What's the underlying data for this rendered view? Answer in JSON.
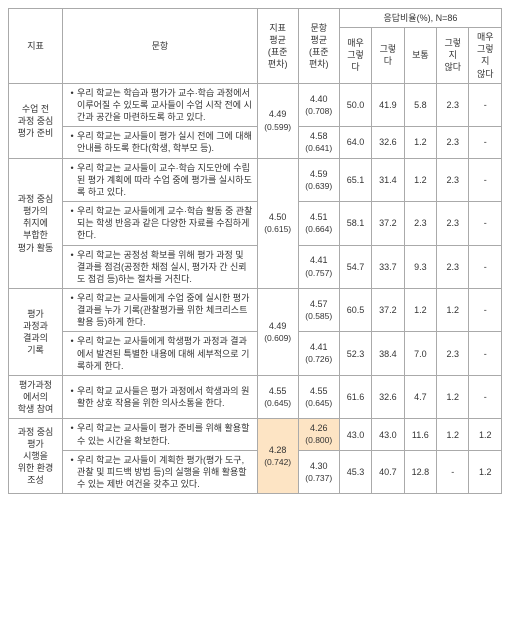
{
  "header": {
    "c1": "지표",
    "c2": "문항",
    "c3a": "지표",
    "c3b": "평균",
    "c3c": "(표준",
    "c3d": "편차)",
    "c4a": "문항",
    "c4b": "평균",
    "c4c": "(표준",
    "c4d": "편차)",
    "c5": "응답비율(%), N=86",
    "c5a1": "매우",
    "c5a2": "그렇다",
    "c5b": "그렇다",
    "c5c": "보통",
    "c5d1": "그렇지",
    "c5d2": "않다",
    "c5e1": "매우",
    "c5e2": "그렇지",
    "c5e3": "않다"
  },
  "groups": [
    {
      "label": "수업 전\n과정 중심\n평가 준비",
      "avg": "4.49",
      "sd": "(0.599)",
      "rows": [
        {
          "desc": "우리 학교는 학습과 평가가 교수·학습 과정에서 이루어질 수 있도록 교사들이 수업 시작 전에 시간과 공간을 마련하도록 하고 있다.",
          "avg": "4.40",
          "sd": "(0.708)",
          "v": [
            "50.0",
            "41.9",
            "5.8",
            "2.3",
            "-"
          ]
        },
        {
          "desc": "우리 학교는 교사들이 평가 실시 전에 그에 대해 안내를 하도록 한다(학생, 학부모 등).",
          "avg": "4.58",
          "sd": "(0.641)",
          "v": [
            "64.0",
            "32.6",
            "1.2",
            "2.3",
            "-"
          ]
        }
      ]
    },
    {
      "label": "과정 중심\n평가의\n취지에\n부합한\n평가 활동",
      "avg": "4.50",
      "sd": "(0.615)",
      "rows": [
        {
          "desc": "우리 학교는 교사들이 교수·학습 지도안에 수립된 평가 계획에 따라 수업 중에 평가를 실시하도록 하고 있다.",
          "avg": "4.59",
          "sd": "(0.639)",
          "v": [
            "65.1",
            "31.4",
            "1.2",
            "2.3",
            "-"
          ]
        },
        {
          "desc": "우리 학교는 교사들에게 교수·학습 활동 중 관찰되는 학생 반응과 같은 다양한 자료를 수집하게 한다.",
          "avg": "4.51",
          "sd": "(0.664)",
          "v": [
            "58.1",
            "37.2",
            "2.3",
            "2.3",
            "-"
          ]
        },
        {
          "desc": "우리 학교는 공정성 확보를 위해 평가 과정 및 결과를 점검(공정한 채점 실시, 평가자 간 신뢰도 점검 등)하는 절차를 거친다.",
          "avg": "4.41",
          "sd": "(0.757)",
          "v": [
            "54.7",
            "33.7",
            "9.3",
            "2.3",
            "-"
          ]
        }
      ]
    },
    {
      "label": "평가\n과정과\n결과의\n기록",
      "avg": "4.49",
      "sd": "(0.609)",
      "rows": [
        {
          "desc": "우리 학교는 교사들에게 수업 중에 실시한 평가 결과를 누가 기록(관찰평가를 위한 체크리스트 활용 등)하게 한다.",
          "avg": "4.57",
          "sd": "(0.585)",
          "v": [
            "60.5",
            "37.2",
            "1.2",
            "1.2",
            "-"
          ]
        },
        {
          "desc": "우리 학교는 교사들에게 학생평가 과정과 결과에서 발견된 특별한 내용에 대해 세부적으로 기록하게 한다.",
          "avg": "4.41",
          "sd": "(0.726)",
          "v": [
            "52.3",
            "38.4",
            "7.0",
            "2.3",
            "-"
          ]
        }
      ]
    },
    {
      "label": "평가과정\n에서의\n학생 참여",
      "avg": "4.55",
      "sd": "(0.645)",
      "rows": [
        {
          "desc": "우리 학교 교사들은 평가 과정에서 학생과의 원활한 상호 작용을 위한 의사소통을 한다.",
          "avg": "4.55",
          "sd": "(0.645)",
          "v": [
            "61.6",
            "32.6",
            "4.7",
            "1.2",
            "-"
          ]
        }
      ]
    },
    {
      "label": "과정 중심\n평가\n시행을\n위한 환경\n조성",
      "avg": "4.28",
      "sd": "(0.742)",
      "hl": true,
      "rows": [
        {
          "desc": "우리 학교는 교사들이 평가 준비를 위해 활용할 수 있는 시간을 확보한다.",
          "avg": "4.26",
          "sd": "(0.800)",
          "hl": true,
          "v": [
            "43.0",
            "43.0",
            "11.6",
            "1.2",
            "1.2"
          ]
        },
        {
          "desc": "우리 학교는 교사들이 계획한 평가(평가 도구, 관찰 및 피드백 방법 등)의 실행을 위해 활용할 수 있는 제반 여건을 갖추고 있다.",
          "avg": "4.30",
          "sd": "(0.737)",
          "v": [
            "45.3",
            "40.7",
            "12.8",
            "-",
            "1.2"
          ]
        }
      ]
    }
  ]
}
